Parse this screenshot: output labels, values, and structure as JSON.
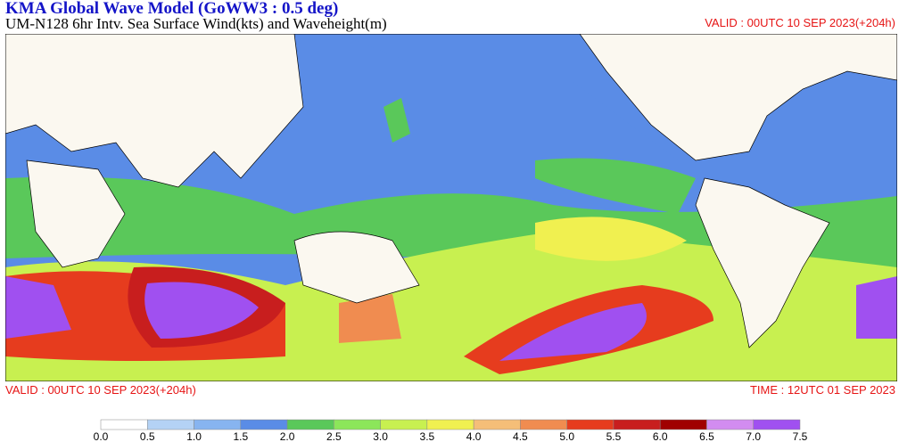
{
  "header": {
    "title": "KMA  Global Wave Model (GoWW3 : 0.5 deg)",
    "subtitle": "UM-N128  6hr Intv. Sea Surface Wind(kts) and Waveheight(m)",
    "valid_top": "VALID : 00UTC 10 SEP 2023(+204h)"
  },
  "footer": {
    "valid": "VALID : 00UTC 10 SEP 2023(+204h)",
    "time": "TIME : 12UTC 01 SEP 2023"
  },
  "colorbar": {
    "labels": [
      "0.0",
      "0.5",
      "1.0",
      "1.5",
      "2.0",
      "2.5",
      "3.0",
      "3.5",
      "4.0",
      "4.5",
      "5.0",
      "5.5",
      "6.0",
      "6.5",
      "7.0",
      "7.5"
    ],
    "colors": [
      "#ffffff",
      "#b4d2f5",
      "#87b4f0",
      "#5a8ce6",
      "#5ac85a",
      "#8ce65a",
      "#c8f050",
      "#f0f050",
      "#f5be78",
      "#f08c50",
      "#e63c1e",
      "#c81e1e",
      "#a00000",
      "#d28cf0",
      "#a050f0"
    ]
  }
}
